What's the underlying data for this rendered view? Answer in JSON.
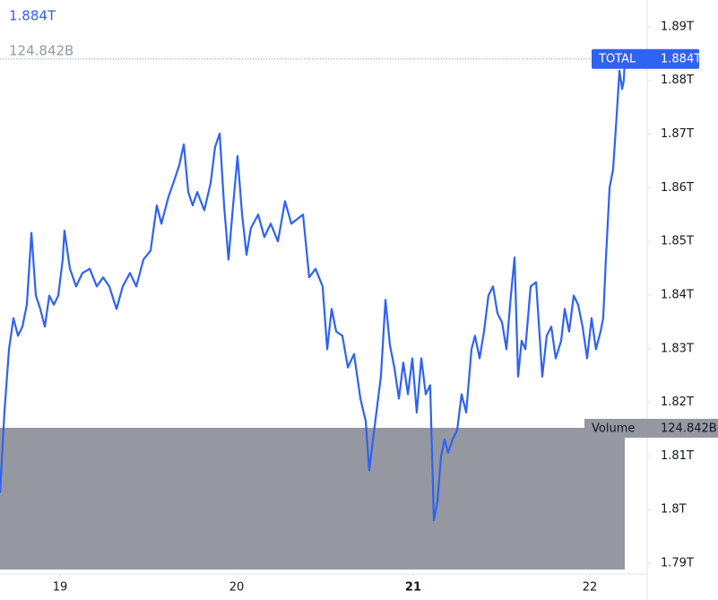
{
  "chart_data": {
    "type": "line",
    "header_value": "1.884T",
    "volume": {
      "name": "Volume",
      "label": "124.842B"
    },
    "price_tag": {
      "name": "TOTAL",
      "label": "1.884T",
      "value": 1.884
    },
    "xlim": [
      18.66,
      22.325
    ],
    "xticks": [
      19,
      20,
      21,
      22
    ],
    "ylim": [
      1.788,
      1.895
    ],
    "yticks": [
      {
        "value": 1.79,
        "label": "1.79T"
      },
      {
        "value": 1.8,
        "label": "1.8T"
      },
      {
        "value": 1.81,
        "label": "1.81T"
      },
      {
        "value": 1.82,
        "label": "1.82T"
      },
      {
        "value": 1.83,
        "label": "1.83T"
      },
      {
        "value": 1.84,
        "label": "1.84T"
      },
      {
        "value": 1.85,
        "label": "1.85T"
      },
      {
        "value": 1.86,
        "label": "1.86T"
      },
      {
        "value": 1.87,
        "label": "1.87T"
      },
      {
        "value": 1.88,
        "label": "1.88T"
      },
      {
        "value": 1.89,
        "label": "1.89T"
      }
    ],
    "grid": false,
    "series": [
      {
        "name": "TOTAL",
        "color": "#2f62f0",
        "x": [
          18.66,
          18.685,
          18.711,
          18.736,
          18.762,
          18.787,
          18.812,
          18.838,
          18.863,
          18.888,
          18.914,
          18.939,
          18.965,
          18.99,
          19.015,
          19.025,
          19.056,
          19.091,
          19.127,
          19.168,
          19.208,
          19.244,
          19.279,
          19.32,
          19.355,
          19.396,
          19.432,
          19.472,
          19.513,
          19.548,
          19.574,
          19.614,
          19.65,
          19.675,
          19.701,
          19.726,
          19.751,
          19.777,
          19.817,
          19.853,
          19.878,
          19.904,
          19.929,
          19.954,
          19.98,
          20.005,
          20.031,
          20.056,
          20.081,
          20.122,
          20.157,
          20.193,
          20.234,
          20.274,
          20.31,
          20.345,
          20.376,
          20.411,
          20.447,
          20.487,
          20.513,
          20.538,
          20.564,
          20.599,
          20.63,
          20.665,
          20.701,
          20.731,
          20.751,
          20.782,
          20.817,
          20.843,
          20.868,
          20.893,
          20.919,
          20.944,
          20.97,
          20.995,
          21.02,
          21.046,
          21.071,
          21.096,
          21.117,
          21.137,
          21.157,
          21.178,
          21.198,
          21.223,
          21.249,
          21.274,
          21.3,
          21.33,
          21.35,
          21.376,
          21.401,
          21.426,
          21.452,
          21.477,
          21.503,
          21.528,
          21.553,
          21.574,
          21.594,
          21.614,
          21.635,
          21.665,
          21.696,
          21.731,
          21.756,
          21.782,
          21.807,
          21.838,
          21.858,
          21.883,
          21.909,
          21.934,
          21.959,
          21.985,
          22.01,
          22.035,
          22.061,
          22.076,
          22.091,
          22.112,
          22.132,
          22.152,
          22.168,
          22.183,
          22.193,
          22.198
        ],
        "values": [
          1.8031,
          1.8181,
          1.8299,
          1.8357,
          1.8324,
          1.8341,
          1.8382,
          1.8516,
          1.8399,
          1.8374,
          1.8341,
          1.8399,
          1.8382,
          1.8399,
          1.8466,
          1.852,
          1.8449,
          1.8416,
          1.8441,
          1.8449,
          1.8416,
          1.8433,
          1.8416,
          1.8374,
          1.8416,
          1.8441,
          1.8416,
          1.8466,
          1.8483,
          1.8567,
          1.8533,
          1.8583,
          1.8617,
          1.8642,
          1.8681,
          1.8592,
          1.8567,
          1.8592,
          1.8558,
          1.8609,
          1.8676,
          1.8701,
          1.8567,
          1.8466,
          1.8567,
          1.8659,
          1.855,
          1.8475,
          1.8525,
          1.855,
          1.8508,
          1.8533,
          1.85,
          1.8575,
          1.8533,
          1.8542,
          1.855,
          1.8433,
          1.8449,
          1.8416,
          1.8299,
          1.8374,
          1.8332,
          1.8324,
          1.8265,
          1.829,
          1.8207,
          1.8165,
          1.8073,
          1.8156,
          1.8248,
          1.8391,
          1.8307,
          1.8265,
          1.8207,
          1.8274,
          1.8215,
          1.8282,
          1.8181,
          1.8282,
          1.8215,
          1.8232,
          1.798,
          1.8014,
          1.8098,
          1.8131,
          1.8106,
          1.8131,
          1.8148,
          1.8215,
          1.8181,
          1.8299,
          1.8324,
          1.8282,
          1.8332,
          1.8399,
          1.8416,
          1.8366,
          1.8349,
          1.8299,
          1.8399,
          1.847,
          1.8248,
          1.8315,
          1.8299,
          1.8416,
          1.8424,
          1.8248,
          1.8324,
          1.8341,
          1.8282,
          1.8315,
          1.8374,
          1.8332,
          1.8399,
          1.8382,
          1.8341,
          1.8282,
          1.8357,
          1.8299,
          1.8332,
          1.8357,
          1.8466,
          1.86,
          1.8634,
          1.8734,
          1.8818,
          1.8784,
          1.8801,
          1.884
        ]
      }
    ]
  }
}
